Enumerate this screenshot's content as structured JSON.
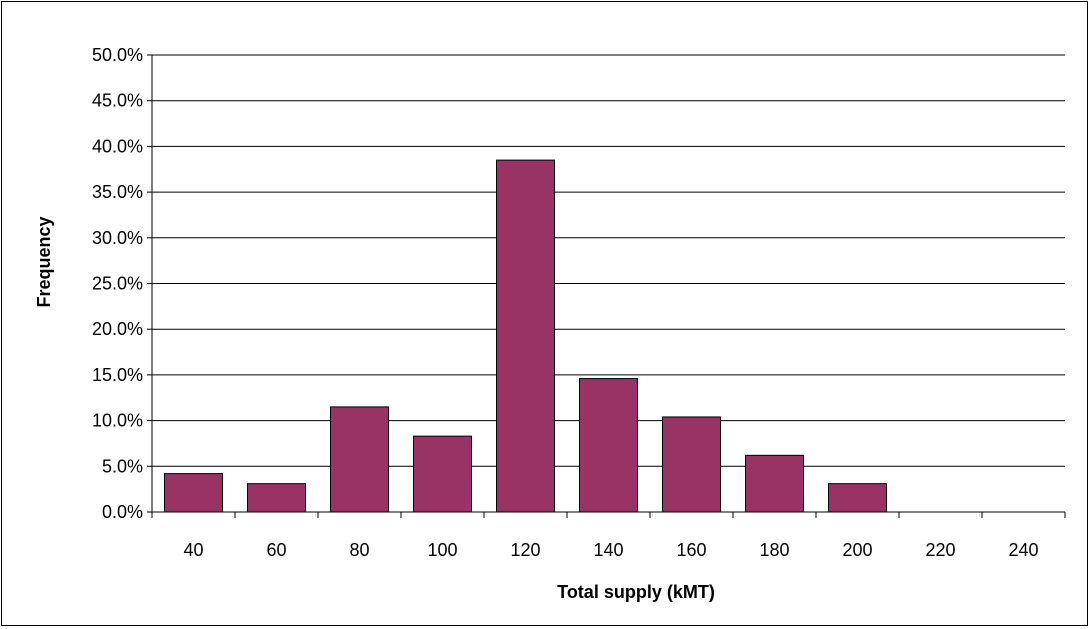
{
  "chart_data": {
    "type": "bar",
    "categories": [
      "40",
      "60",
      "80",
      "100",
      "120",
      "140",
      "160",
      "180",
      "200",
      "220",
      "240"
    ],
    "values": [
      0.042,
      0.031,
      0.115,
      0.083,
      0.385,
      0.146,
      0.104,
      0.062,
      0.031,
      0.0,
      0.0
    ],
    "title": "",
    "xlabel": "Total supply (kMT)",
    "ylabel": "Frequency",
    "ylim": [
      0,
      0.5
    ],
    "yticks": [
      "0.0%",
      "5.0%",
      "10.0%",
      "15.0%",
      "20.0%",
      "25.0%",
      "30.0%",
      "35.0%",
      "40.0%",
      "45.0%",
      "50.0%"
    ],
    "grid": true,
    "legend": "none",
    "bar_color": "#993366"
  }
}
